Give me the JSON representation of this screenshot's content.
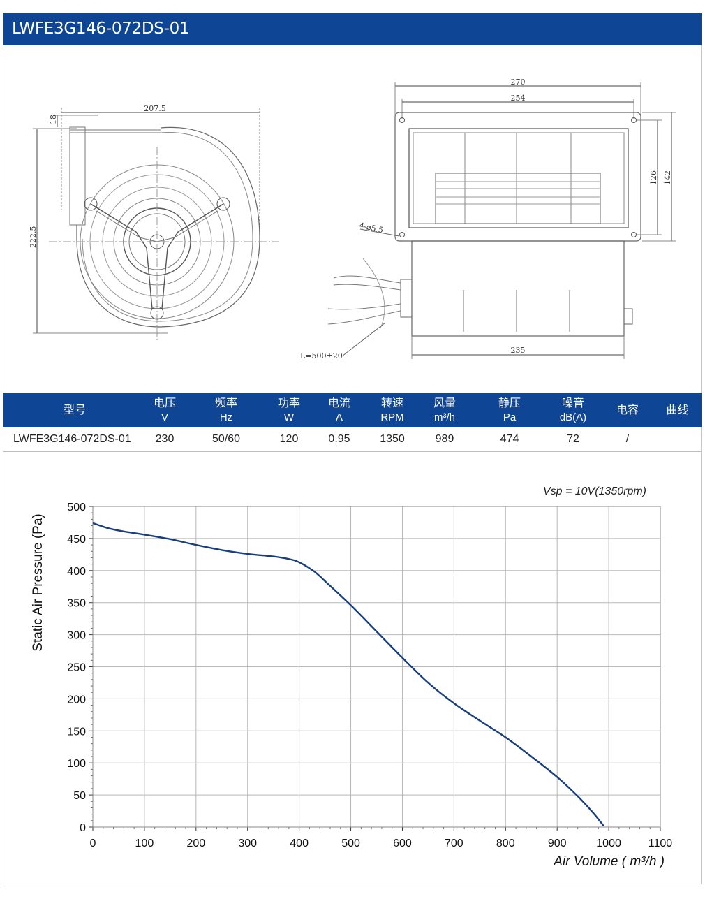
{
  "header": {
    "title": "LWFE3G146-072DS-01"
  },
  "drawing": {
    "dims": {
      "width_207": "207.5",
      "height_18": "18",
      "height_222": "222.5",
      "width_270": "270",
      "width_254": "254",
      "height_126": "126",
      "height_142": "142",
      "holes": "4-⌀5.5",
      "width_235": "235",
      "cable": "L=500±20"
    }
  },
  "table": {
    "headers": [
      {
        "name": "型号",
        "unit": ""
      },
      {
        "name": "电压",
        "unit": "V"
      },
      {
        "name": "频率",
        "unit": "Hz"
      },
      {
        "name": "功率",
        "unit": "W"
      },
      {
        "name": "电流",
        "unit": "A"
      },
      {
        "name": "转速",
        "unit": "RPM"
      },
      {
        "name": "风量",
        "unit": "m³/h"
      },
      {
        "name": "静压",
        "unit": "Pa"
      },
      {
        "name": "噪音",
        "unit": "dB(A)"
      },
      {
        "name": "电容",
        "unit": ""
      },
      {
        "name": "曲线",
        "unit": ""
      }
    ],
    "row": [
      "LWFE3G146-072DS-01",
      "230",
      "50/60",
      "120",
      "0.95",
      "1350",
      "989",
      "474",
      "72",
      "/"
    ]
  },
  "chart_data": {
    "type": "line",
    "title": "",
    "annotation": "Vsp = 10V(1350rpm)",
    "xlabel": "Air Volume ( m³/h )",
    "ylabel": "Static Air Pressure  (Pa)",
    "xlim": [
      0,
      1100
    ],
    "ylim": [
      0,
      500
    ],
    "xticks": [
      0,
      100,
      200,
      300,
      400,
      500,
      600,
      700,
      800,
      900,
      1000,
      1100
    ],
    "yticks": [
      0,
      50,
      100,
      150,
      200,
      250,
      300,
      350,
      400,
      450,
      500
    ],
    "grid": true,
    "series": [
      {
        "color": "#173f7f",
        "x": [
          0,
          30,
          60,
          100,
          150,
          200,
          250,
          300,
          350,
          380,
          400,
          430,
          460,
          500,
          550,
          600,
          650,
          700,
          750,
          800,
          850,
          900,
          940,
          970,
          990
        ],
        "y": [
          474,
          466,
          461,
          456,
          449,
          440,
          432,
          426,
          422,
          418,
          413,
          398,
          376,
          346,
          305,
          264,
          225,
          193,
          166,
          140,
          110,
          78,
          48,
          22,
          2
        ]
      }
    ]
  }
}
